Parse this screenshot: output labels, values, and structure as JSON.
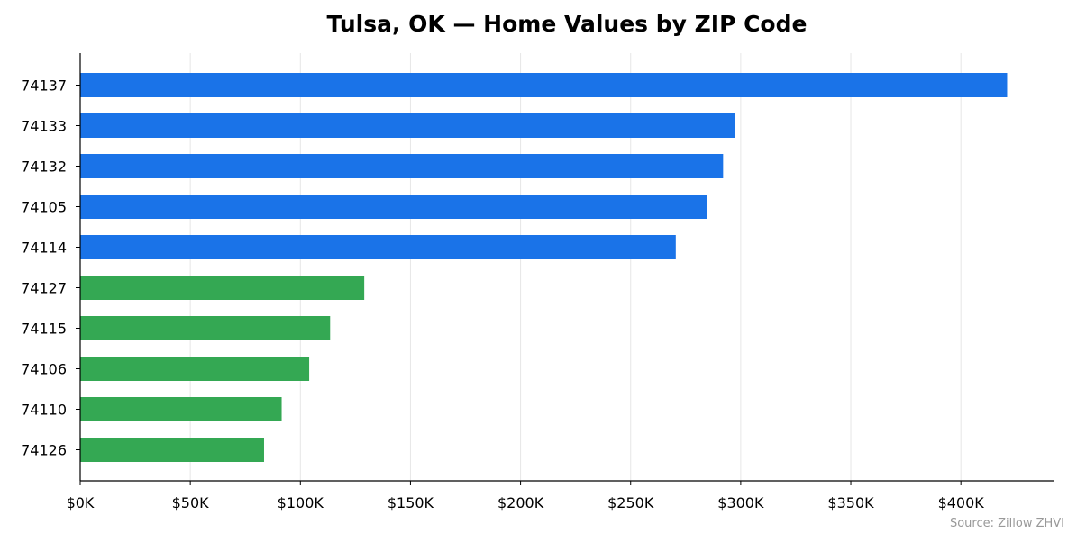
{
  "chart_data": {
    "type": "bar",
    "orientation": "horizontal",
    "title": "Tulsa, OK — Home Values by ZIP Code",
    "xlabel": "",
    "ylabel": "",
    "categories": [
      "74137",
      "74133",
      "74132",
      "74105",
      "74114",
      "74127",
      "74115",
      "74106",
      "74110",
      "74126"
    ],
    "values": [
      421000,
      297500,
      292000,
      284500,
      270500,
      129000,
      113500,
      104000,
      91500,
      83500
    ],
    "bar_colors": [
      "#1a73e8",
      "#1a73e8",
      "#1a73e8",
      "#1a73e8",
      "#1a73e8",
      "#34a853",
      "#34a853",
      "#34a853",
      "#34a853",
      "#34a853"
    ],
    "xlim": [
      0,
      442500
    ],
    "xticks": [
      0,
      50000,
      100000,
      150000,
      200000,
      250000,
      300000,
      350000,
      400000
    ],
    "xtick_labels": [
      "$0K",
      "$50K",
      "$100K",
      "$150K",
      "$200K",
      "$250K",
      "$300K",
      "$350K",
      "$400K"
    ],
    "grid": "vertical",
    "source": "Source: Zillow ZHVI"
  }
}
